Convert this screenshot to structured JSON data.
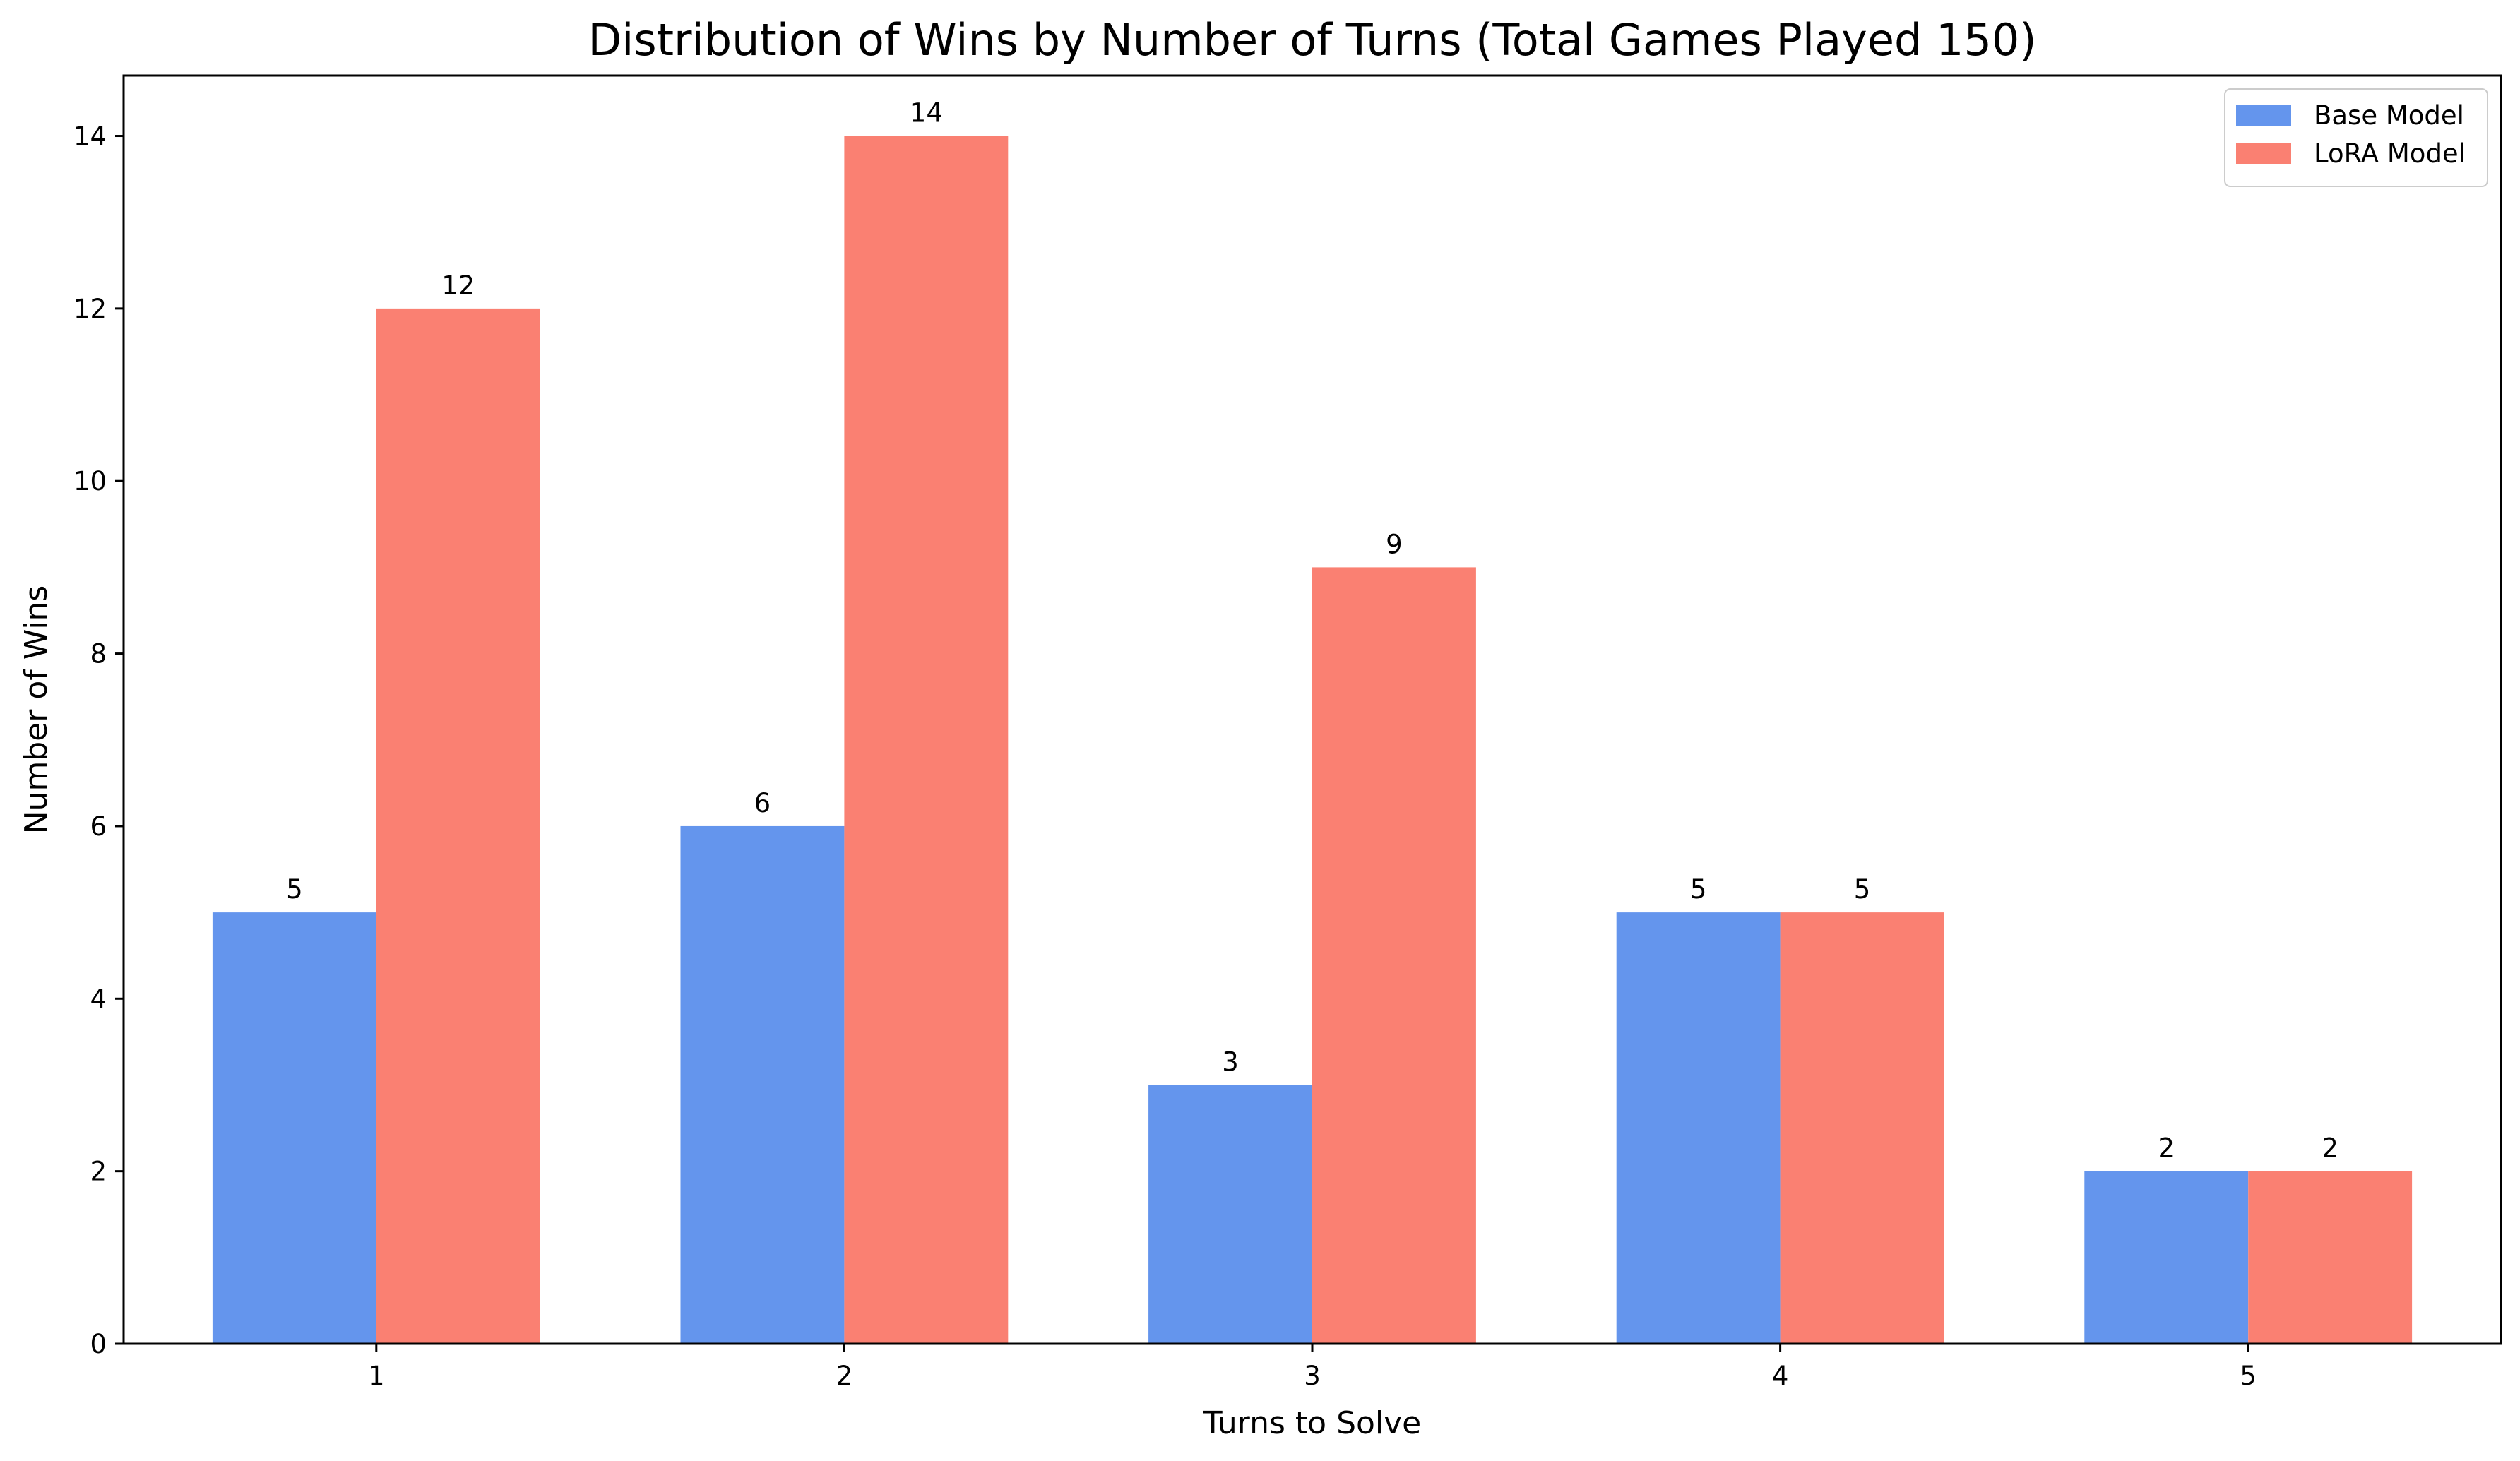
{
  "chart_data": {
    "type": "bar",
    "title": "Distribution of Wins by Number of Turns (Total Games Played 150)",
    "xlabel": "Turns to Solve",
    "ylabel": "Number of Wins",
    "categories": [
      "1",
      "2",
      "3",
      "4",
      "5"
    ],
    "series": [
      {
        "name": "Base Model",
        "values": [
          5,
          6,
          3,
          5,
          2
        ],
        "color": "#6495ED"
      },
      {
        "name": "LoRA Model",
        "values": [
          12,
          14,
          9,
          5,
          2
        ],
        "color": "#FA8072"
      }
    ],
    "ylim": [
      0,
      14.7
    ],
    "yticks": [
      0,
      2,
      4,
      6,
      8,
      10,
      12,
      14
    ],
    "grid": false,
    "legend_position": "top-right"
  }
}
